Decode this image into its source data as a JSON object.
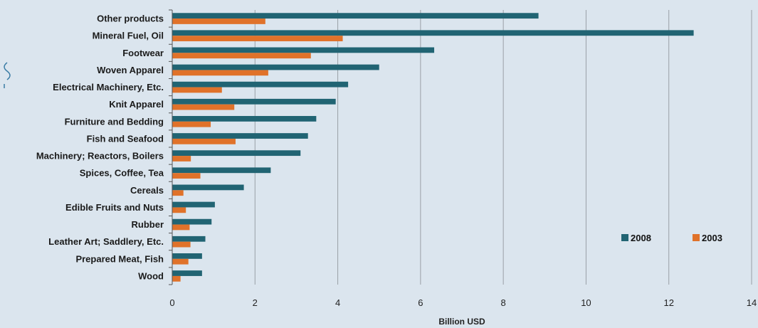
{
  "colors": {
    "background": "#dbe5ee",
    "series_2008": "#216473",
    "series_2003": "#e0722a",
    "gridline": "#9aa0a6",
    "left_edge_mark": "#3a7ca5"
  },
  "chart_data": {
    "type": "bar",
    "orientation": "horizontal",
    "title": "",
    "xlabel": "Billion USD",
    "ylabel": "",
    "xlim": [
      0,
      14
    ],
    "xticks": [
      0,
      2,
      4,
      6,
      8,
      10,
      12,
      14
    ],
    "grid": true,
    "legend_position": "bottom-right",
    "categories": [
      "Other products",
      "Mineral Fuel, Oil",
      "Footwear",
      "Woven Apparel",
      "Electrical Machinery, Etc.",
      "Knit Apparel",
      "Furniture and Bedding",
      "Fish and Seafood",
      "Machinery; Reactors, Boilers",
      "Spices, Coffee, Tea",
      "Cereals",
      "Edible Fruits and Nuts",
      "Rubber",
      "Leather Art; Saddlery, Etc.",
      "Prepared Meat, Fish",
      "Wood"
    ],
    "series": [
      {
        "name": "2008",
        "color": "#216473",
        "values": [
          8.85,
          12.6,
          6.33,
          5.0,
          4.25,
          3.95,
          3.48,
          3.28,
          3.1,
          2.38,
          1.73,
          1.03,
          0.95,
          0.8,
          0.72,
          0.72
        ]
      },
      {
        "name": "2003",
        "color": "#e0722a",
        "values": [
          2.25,
          4.12,
          3.35,
          2.32,
          1.2,
          1.5,
          0.93,
          1.53,
          0.45,
          0.68,
          0.27,
          0.33,
          0.42,
          0.44,
          0.39,
          0.2
        ]
      }
    ]
  }
}
